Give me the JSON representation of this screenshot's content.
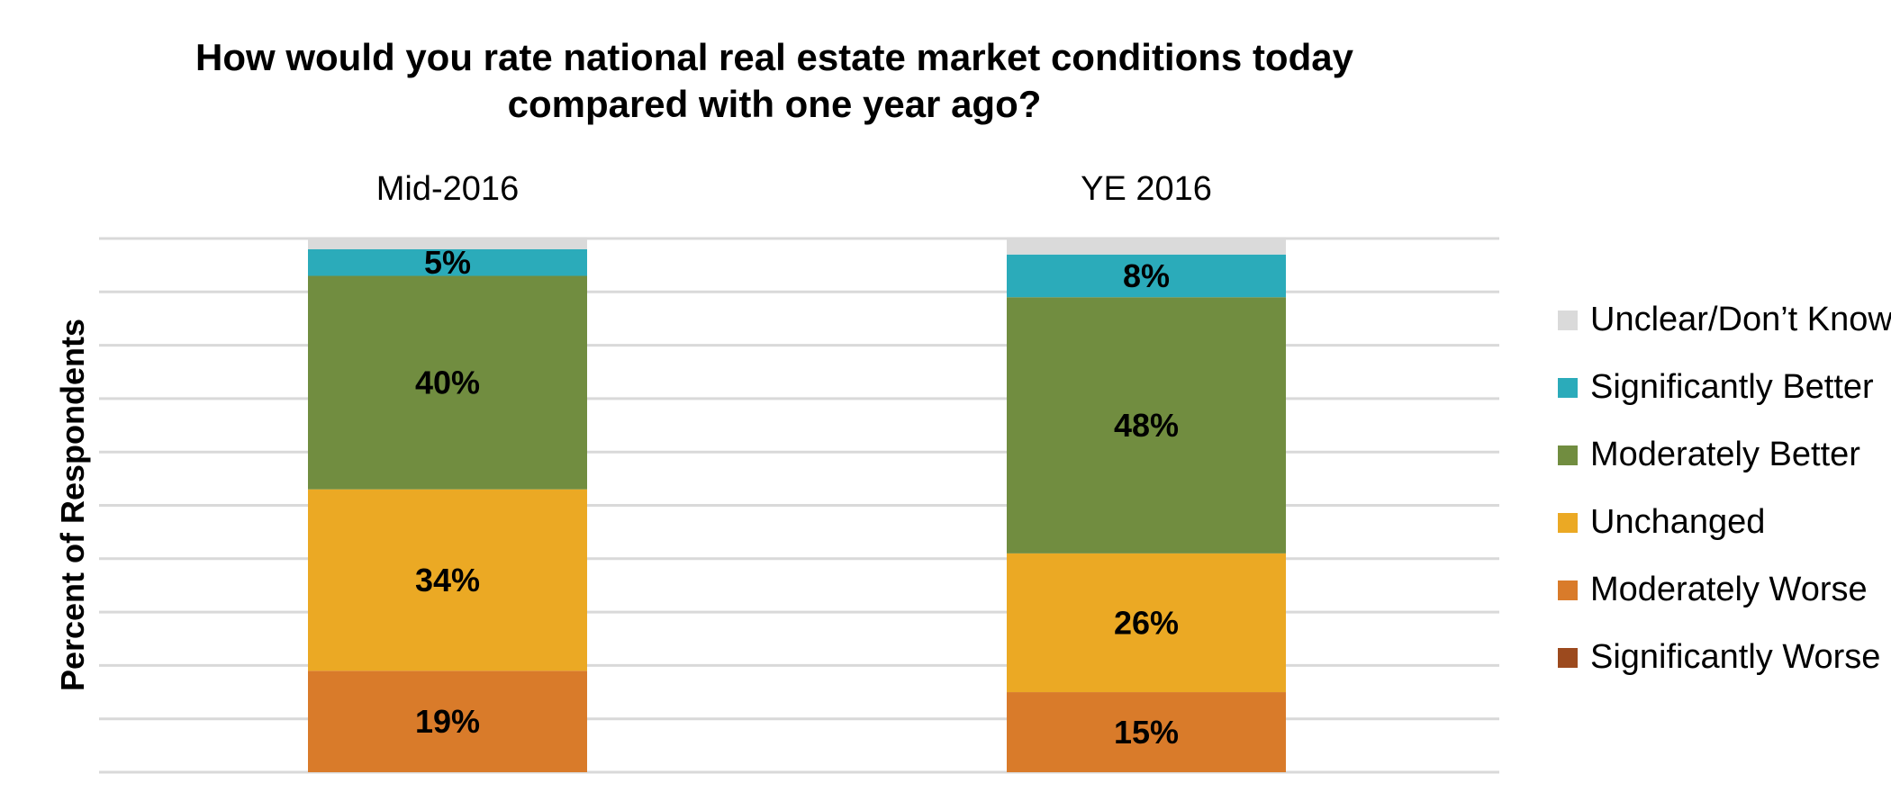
{
  "chart_data": {
    "type": "bar",
    "stacked": true,
    "title_lines": [
      "How would you rate national real estate market conditions today",
      "compared with one year ago?"
    ],
    "ylabel": "Percent of Respondents",
    "ylim": [
      0,
      100
    ],
    "grid": true,
    "legend_position": "right",
    "categories": [
      "Mid-2016",
      "YE 2016"
    ],
    "series": [
      {
        "name": "Significantly Worse",
        "color": "#9C4A1E",
        "values": [
          0,
          0
        ],
        "labels": [
          "",
          ""
        ]
      },
      {
        "name": "Moderately Worse",
        "color": "#D97B2A",
        "values": [
          19,
          15
        ],
        "labels": [
          "19%",
          "15%"
        ]
      },
      {
        "name": "Unchanged",
        "color": "#EBA924",
        "values": [
          34,
          26
        ],
        "labels": [
          "34%",
          "26%"
        ]
      },
      {
        "name": "Moderately Better",
        "color": "#718D40",
        "values": [
          40,
          48
        ],
        "labels": [
          "40%",
          "48%"
        ]
      },
      {
        "name": "Significantly Better",
        "color": "#2BABBA",
        "values": [
          5,
          8
        ],
        "labels": [
          "5%",
          "8%"
        ]
      },
      {
        "name": "Unclear/Don’t Know",
        "color": "#DADADA",
        "values": [
          2,
          3
        ],
        "labels": [
          "",
          ""
        ]
      }
    ],
    "legend_order": [
      "Unclear/Don’t Know",
      "Significantly Better",
      "Moderately Better",
      "Unchanged",
      "Moderately Worse",
      "Significantly Worse"
    ]
  }
}
